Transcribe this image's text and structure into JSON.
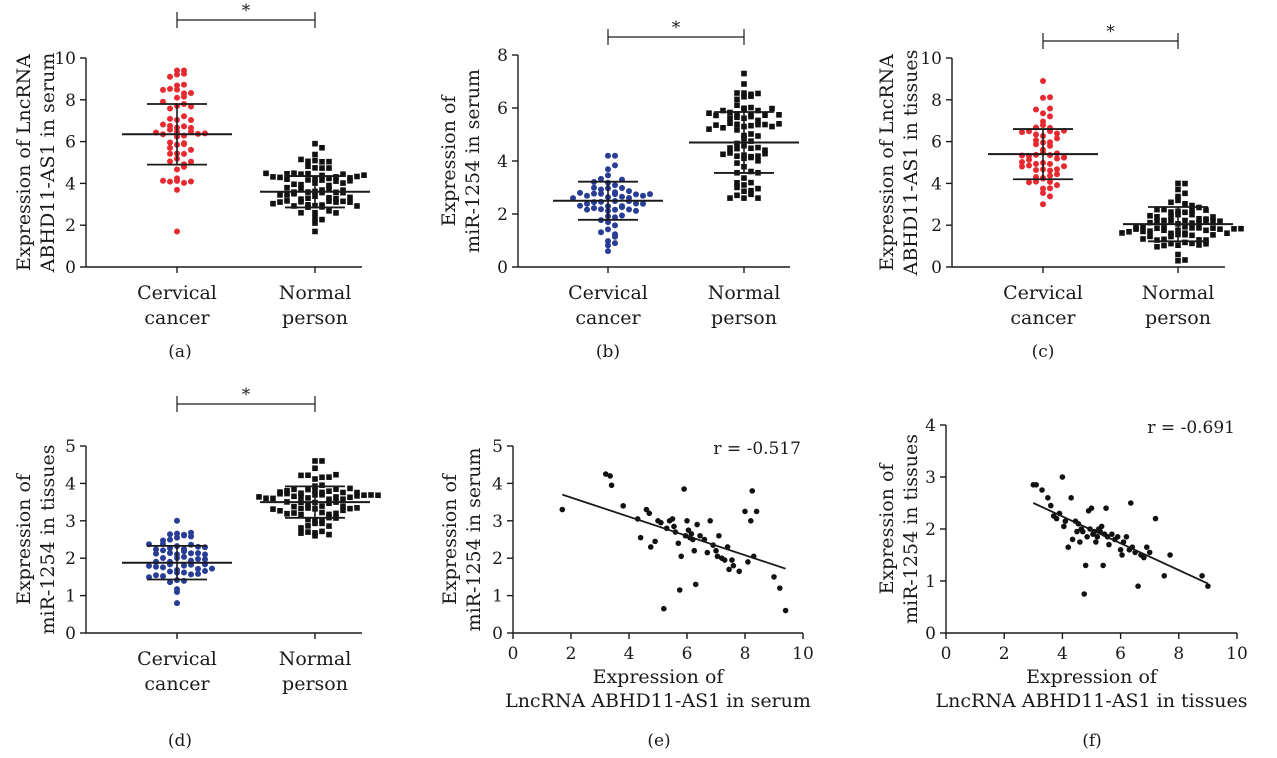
{
  "figure": {
    "background": "#ffffff",
    "axis_color": "#1a1a1a"
  },
  "chart_data": [
    {
      "id": "a",
      "type": "scatter",
      "caption": "(a)",
      "categories": [
        "Cervical cancer",
        "Normal person"
      ],
      "category_lines": [
        [
          "Cervical",
          "cancer"
        ],
        [
          "Normal",
          "person"
        ]
      ],
      "colors": [
        "#e8292f",
        "#111111"
      ],
      "markers": [
        "circle",
        "square"
      ],
      "ylabel": [
        "Expression of LncRNA",
        "ABHD11-AS1 in serum"
      ],
      "ylim": [
        0,
        10
      ],
      "yticks": [
        0,
        2,
        4,
        6,
        8,
        10
      ],
      "summary": [
        {
          "mean": 6.35,
          "sd": 1.45
        },
        {
          "mean": 3.6,
          "sd": 0.75
        }
      ],
      "n": [
        60,
        80
      ],
      "range": [
        [
          1.7,
          9.4
        ],
        [
          1.7,
          5.9
        ]
      ],
      "significance": "*"
    },
    {
      "id": "b",
      "type": "scatter",
      "caption": "(b)",
      "categories": [
        "Cervical cancer",
        "Normal person"
      ],
      "category_lines": [
        [
          "Cervical",
          "cancer"
        ],
        [
          "Normal",
          "person"
        ]
      ],
      "colors": [
        "#283d96",
        "#111111"
      ],
      "markers": [
        "circle",
        "square"
      ],
      "ylabel": [
        "Expression of",
        "miR-1254 in serum"
      ],
      "ylim": [
        0,
        8
      ],
      "yticks": [
        0,
        2,
        4,
        6,
        8
      ],
      "summary": [
        {
          "mean": 2.5,
          "sd": 0.72
        },
        {
          "mean": 4.7,
          "sd": 1.15
        }
      ],
      "n": [
        60,
        80
      ],
      "range": [
        [
          0.6,
          4.2
        ],
        [
          2.6,
          7.3
        ]
      ],
      "significance": "*"
    },
    {
      "id": "c",
      "type": "scatter",
      "caption": "(c)",
      "categories": [
        "Cervical cancer",
        "Normal person"
      ],
      "category_lines": [
        [
          "Cervical",
          "cancer"
        ],
        [
          "Normal",
          "person"
        ]
      ],
      "colors": [
        "#e8292f",
        "#111111"
      ],
      "markers": [
        "circle",
        "square"
      ],
      "ylabel": [
        "Expression of LncRNA",
        "ABHD11-AS1 in tissues"
      ],
      "ylim": [
        0,
        10
      ],
      "yticks": [
        0,
        2,
        4,
        6,
        8,
        10
      ],
      "summary": [
        {
          "mean": 5.4,
          "sd": 1.2
        },
        {
          "mean": 2.05,
          "sd": 0.82
        }
      ],
      "n": [
        60,
        80
      ],
      "range": [
        [
          3.0,
          8.9
        ],
        [
          0.3,
          4.0
        ]
      ],
      "significance": "*"
    },
    {
      "id": "d",
      "type": "scatter",
      "caption": "(d)",
      "categories": [
        "Cervical cancer",
        "Normal person"
      ],
      "category_lines": [
        [
          "Cervical",
          "cancer"
        ],
        [
          "Normal",
          "person"
        ]
      ],
      "colors": [
        "#283d96",
        "#111111"
      ],
      "markers": [
        "circle",
        "square"
      ],
      "ylabel": [
        "Expression of",
        "miR-1254 in tissues"
      ],
      "ylim": [
        0,
        5
      ],
      "yticks": [
        0,
        1,
        2,
        3,
        4,
        5
      ],
      "summary": [
        {
          "mean": 1.88,
          "sd": 0.45
        },
        {
          "mean": 3.5,
          "sd": 0.42
        }
      ],
      "n": [
        60,
        80
      ],
      "range": [
        [
          0.8,
          3.0
        ],
        [
          2.6,
          4.6
        ]
      ],
      "significance": "*"
    },
    {
      "id": "e",
      "type": "scatter",
      "caption": "(e)",
      "annotation": "r = -0.517",
      "xlabel": [
        "Expression of",
        "LncRNA ABHD11-AS1 in serum"
      ],
      "ylabel": [
        "Expression of",
        "miR-1254 in serum"
      ],
      "xlim": [
        0,
        10
      ],
      "xticks": [
        0,
        2,
        4,
        6,
        8,
        10
      ],
      "ylim": [
        0,
        5
      ],
      "yticks": [
        0,
        1,
        2,
        3,
        4,
        5
      ],
      "fit": {
        "x": [
          1.7,
          9.4
        ],
        "y": [
          3.7,
          1.72
        ]
      },
      "points": [
        [
          1.7,
          3.3
        ],
        [
          3.2,
          4.25
        ],
        [
          3.35,
          4.2
        ],
        [
          3.4,
          3.95
        ],
        [
          3.8,
          3.4
        ],
        [
          4.3,
          3.05
        ],
        [
          4.4,
          2.55
        ],
        [
          4.6,
          3.3
        ],
        [
          4.7,
          3.2
        ],
        [
          4.75,
          2.3
        ],
        [
          4.9,
          2.45
        ],
        [
          5.0,
          3.0
        ],
        [
          5.1,
          2.95
        ],
        [
          5.2,
          0.65
        ],
        [
          5.3,
          2.8
        ],
        [
          5.4,
          3.0
        ],
        [
          5.5,
          3.05
        ],
        [
          5.55,
          2.85
        ],
        [
          5.6,
          2.7
        ],
        [
          5.7,
          2.4
        ],
        [
          5.75,
          1.15
        ],
        [
          5.8,
          2.05
        ],
        [
          5.9,
          3.85
        ],
        [
          5.95,
          2.6
        ],
        [
          6.0,
          3.0
        ],
        [
          6.05,
          2.75
        ],
        [
          6.1,
          2.55
        ],
        [
          6.15,
          2.65
        ],
        [
          6.2,
          2.5
        ],
        [
          6.25,
          2.2
        ],
        [
          6.3,
          1.3
        ],
        [
          6.35,
          2.9
        ],
        [
          6.45,
          2.6
        ],
        [
          6.6,
          2.5
        ],
        [
          6.7,
          2.15
        ],
        [
          6.8,
          3.0
        ],
        [
          6.9,
          2.35
        ],
        [
          7.0,
          2.2
        ],
        [
          7.05,
          2.05
        ],
        [
          7.1,
          2.6
        ],
        [
          7.2,
          2.0
        ],
        [
          7.3,
          1.95
        ],
        [
          7.4,
          2.3
        ],
        [
          7.45,
          1.7
        ],
        [
          7.55,
          1.95
        ],
        [
          7.6,
          1.8
        ],
        [
          7.8,
          1.65
        ],
        [
          8.0,
          3.25
        ],
        [
          8.1,
          1.9
        ],
        [
          8.2,
          3.0
        ],
        [
          8.25,
          3.8
        ],
        [
          8.3,
          2.05
        ],
        [
          8.4,
          3.25
        ],
        [
          9.0,
          1.5
        ],
        [
          9.2,
          1.2
        ],
        [
          9.4,
          0.6
        ]
      ]
    },
    {
      "id": "f",
      "type": "scatter",
      "caption": "(f)",
      "annotation": "r = -0.691",
      "xlabel": [
        "Expression of",
        "LncRNA ABHD11-AS1 in tissues"
      ],
      "ylabel": [
        "Expression of",
        "miR-1254 in tissues"
      ],
      "xlim": [
        0,
        10
      ],
      "xticks": [
        0,
        2,
        4,
        6,
        8,
        10
      ],
      "ylim": [
        0,
        4
      ],
      "yticks": [
        0,
        1,
        2,
        3,
        4
      ],
      "fit": {
        "x": [
          3.0,
          9.0
        ],
        "y": [
          2.5,
          0.95
        ]
      },
      "points": [
        [
          3.0,
          2.85
        ],
        [
          3.1,
          2.85
        ],
        [
          3.3,
          2.75
        ],
        [
          3.5,
          2.6
        ],
        [
          3.6,
          2.45
        ],
        [
          3.7,
          2.25
        ],
        [
          3.8,
          2.2
        ],
        [
          3.9,
          2.3
        ],
        [
          4.0,
          3.0
        ],
        [
          4.05,
          2.05
        ],
        [
          4.1,
          2.15
        ],
        [
          4.2,
          1.65
        ],
        [
          4.3,
          2.6
        ],
        [
          4.35,
          1.8
        ],
        [
          4.45,
          2.15
        ],
        [
          4.5,
          1.95
        ],
        [
          4.55,
          2.1
        ],
        [
          4.6,
          1.75
        ],
        [
          4.65,
          2.0
        ],
        [
          4.7,
          1.95
        ],
        [
          4.75,
          0.75
        ],
        [
          4.8,
          1.3
        ],
        [
          4.85,
          1.85
        ],
        [
          4.9,
          2.35
        ],
        [
          4.95,
          2.0
        ],
        [
          5.0,
          2.4
        ],
        [
          5.05,
          1.9
        ],
        [
          5.1,
          1.95
        ],
        [
          5.15,
          1.75
        ],
        [
          5.2,
          1.85
        ],
        [
          5.25,
          2.0
        ],
        [
          5.3,
          1.95
        ],
        [
          5.35,
          2.05
        ],
        [
          5.4,
          1.3
        ],
        [
          5.45,
          1.9
        ],
        [
          5.5,
          2.4
        ],
        [
          5.55,
          1.85
        ],
        [
          5.6,
          1.7
        ],
        [
          5.7,
          1.9
        ],
        [
          5.8,
          1.8
        ],
        [
          5.9,
          1.85
        ],
        [
          6.0,
          1.6
        ],
        [
          6.05,
          1.5
        ],
        [
          6.1,
          1.75
        ],
        [
          6.2,
          1.85
        ],
        [
          6.3,
          1.6
        ],
        [
          6.35,
          2.5
        ],
        [
          6.4,
          1.65
        ],
        [
          6.5,
          1.55
        ],
        [
          6.6,
          0.9
        ],
        [
          6.7,
          1.5
        ],
        [
          6.8,
          1.45
        ],
        [
          6.9,
          1.65
        ],
        [
          7.0,
          1.55
        ],
        [
          7.2,
          2.2
        ],
        [
          7.5,
          1.1
        ],
        [
          7.7,
          1.5
        ],
        [
          8.8,
          1.1
        ],
        [
          9.0,
          0.9
        ]
      ]
    }
  ]
}
